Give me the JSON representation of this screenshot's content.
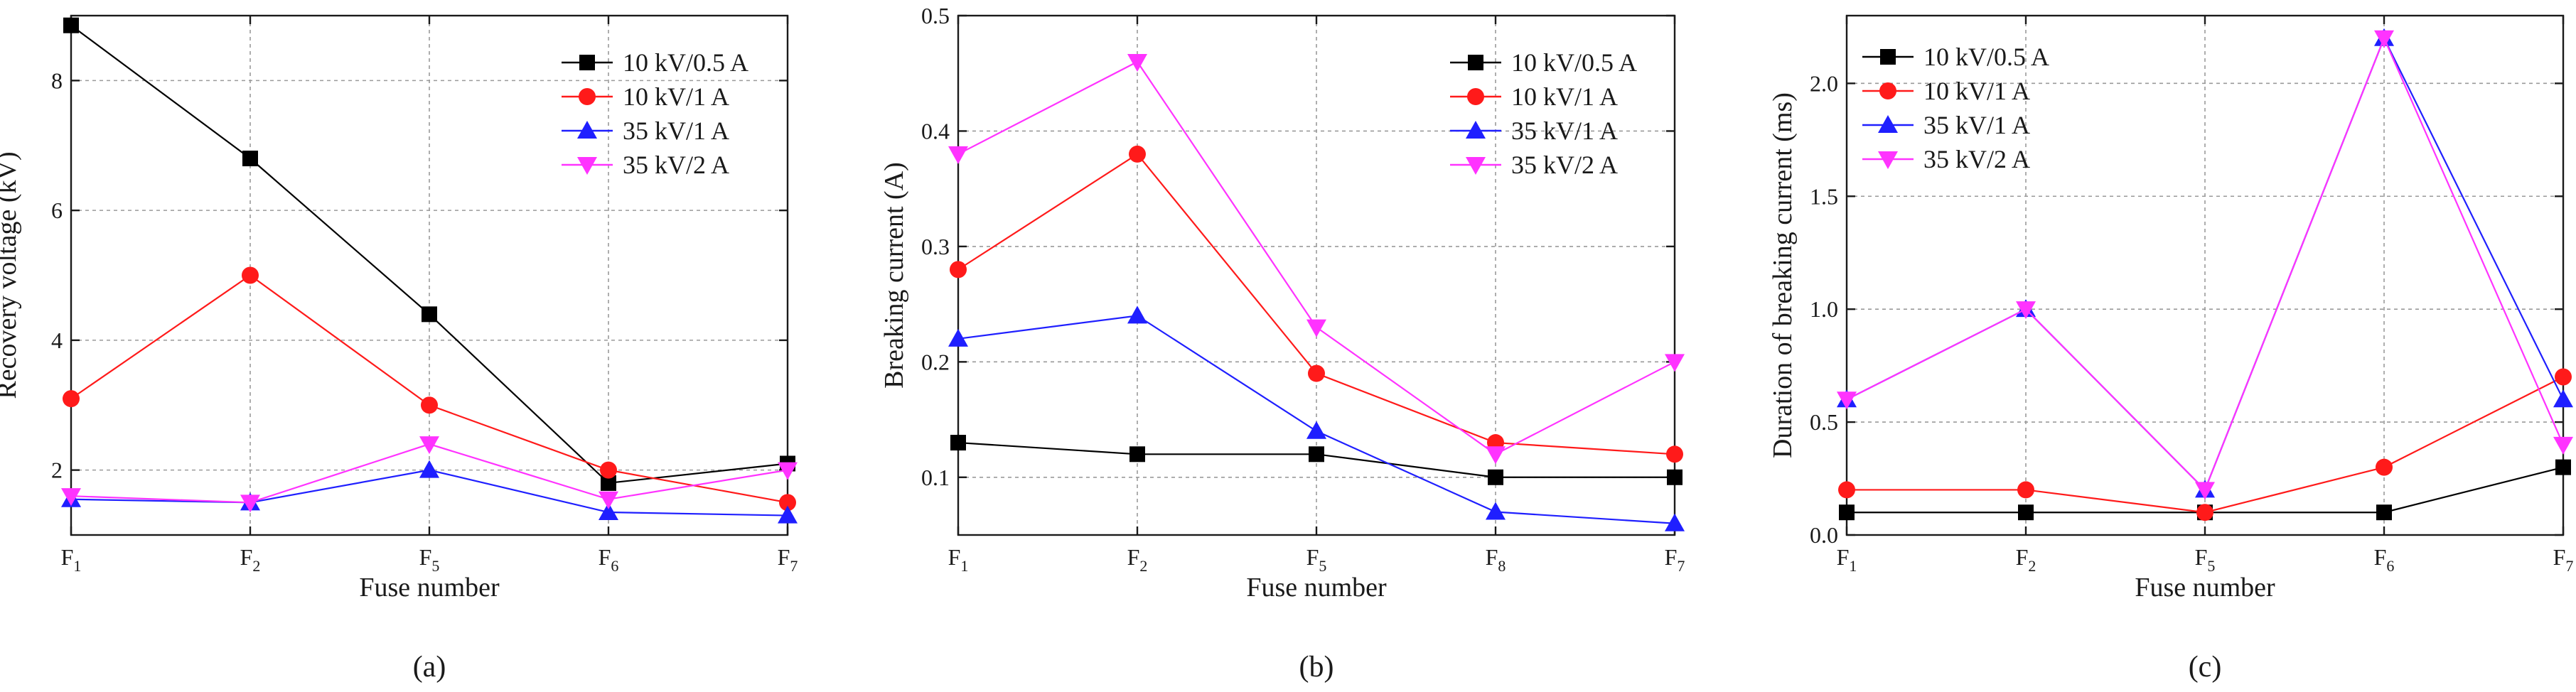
{
  "figure": {
    "panels": [
      "(a)",
      "(b)",
      "(c)"
    ]
  },
  "series_styles": [
    {
      "name": "10 kV/0.5 A",
      "color": "#000000",
      "marker": "square"
    },
    {
      "name": "10 kV/1 A",
      "color": "#ff1a1a",
      "marker": "circle"
    },
    {
      "name": "35 kV/1 A",
      "color": "#1f1fff",
      "marker": "triangle-up"
    },
    {
      "name": "35 kV/2 A",
      "color": "#ff33ff",
      "marker": "triangle-down"
    }
  ],
  "chart_data": [
    {
      "type": "line",
      "panel_label": "(a)",
      "categories": [
        {
          "base": "F",
          "sub": "1"
        },
        {
          "base": "F",
          "sub": "2"
        },
        {
          "base": "F",
          "sub": "5"
        },
        {
          "base": "F",
          "sub": "6"
        },
        {
          "base": "F",
          "sub": "7"
        }
      ],
      "xlabel": "Fuse number",
      "ylabel": "Recovery voltage (kV)",
      "ylim": [
        1.0,
        9.0
      ],
      "yticks": [
        2,
        4,
        6,
        8
      ],
      "ytick_labels": [
        "2",
        "4",
        "6",
        "8"
      ],
      "legend_position": "top-right",
      "series": [
        {
          "name": "10 kV/0.5 A",
          "values": [
            8.85,
            6.8,
            4.4,
            1.8,
            2.1
          ]
        },
        {
          "name": "10 kV/1 A",
          "values": [
            3.1,
            5.0,
            3.0,
            2.0,
            1.5
          ]
        },
        {
          "name": "35 kV/1 A",
          "values": [
            1.55,
            1.5,
            2.0,
            1.35,
            1.3
          ]
        },
        {
          "name": "35 kV/2 A",
          "values": [
            1.6,
            1.5,
            2.4,
            1.55,
            2.0
          ]
        }
      ]
    },
    {
      "type": "line",
      "panel_label": "(b)",
      "categories": [
        {
          "base": "F",
          "sub": "1"
        },
        {
          "base": "F",
          "sub": "2"
        },
        {
          "base": "F",
          "sub": "5"
        },
        {
          "base": "F",
          "sub": "8"
        },
        {
          "base": "F",
          "sub": "7"
        }
      ],
      "xlabel": "Fuse number",
      "ylabel": "Breaking current (A)",
      "ylim": [
        0.05,
        0.5
      ],
      "yticks": [
        0.1,
        0.2,
        0.3,
        0.4,
        0.5
      ],
      "ytick_labels": [
        "0.1",
        "0.2",
        "0.3",
        "0.4",
        "0.5"
      ],
      "legend_position": "top-right",
      "series": [
        {
          "name": "10 kV/0.5 A",
          "values": [
            0.13,
            0.12,
            0.12,
            0.1,
            0.1
          ]
        },
        {
          "name": "10 kV/1 A",
          "values": [
            0.28,
            0.38,
            0.19,
            0.13,
            0.12
          ]
        },
        {
          "name": "35 kV/1 A",
          "values": [
            0.22,
            0.24,
            0.14,
            0.07,
            0.06
          ]
        },
        {
          "name": "35 kV/2 A",
          "values": [
            0.38,
            0.46,
            0.23,
            0.12,
            0.2
          ]
        }
      ]
    },
    {
      "type": "line",
      "panel_label": "(c)",
      "categories": [
        {
          "base": "F",
          "sub": "1"
        },
        {
          "base": "F",
          "sub": "2"
        },
        {
          "base": "F",
          "sub": "5"
        },
        {
          "base": "F",
          "sub": "6"
        },
        {
          "base": "F",
          "sub": "7"
        }
      ],
      "xlabel": "Fuse number",
      "ylabel": "Duration of breaking current (ms)",
      "ylim": [
        0.0,
        2.3
      ],
      "yticks": [
        0.0,
        0.5,
        1.0,
        1.5,
        2.0
      ],
      "ytick_labels": [
        "0.0",
        "0.5",
        "1.0",
        "1.5",
        "2.0"
      ],
      "legend_position": "top-left",
      "series": [
        {
          "name": "10 kV/0.5 A",
          "values": [
            0.1,
            0.1,
            0.1,
            0.1,
            0.3
          ]
        },
        {
          "name": "10 kV/1 A",
          "values": [
            0.2,
            0.2,
            0.1,
            0.3,
            0.7
          ]
        },
        {
          "name": "35 kV/1 A",
          "values": [
            0.6,
            1.0,
            0.2,
            2.2,
            0.6
          ]
        },
        {
          "name": "35 kV/2 A",
          "values": [
            0.6,
            1.0,
            0.2,
            2.2,
            0.4
          ]
        }
      ]
    }
  ]
}
